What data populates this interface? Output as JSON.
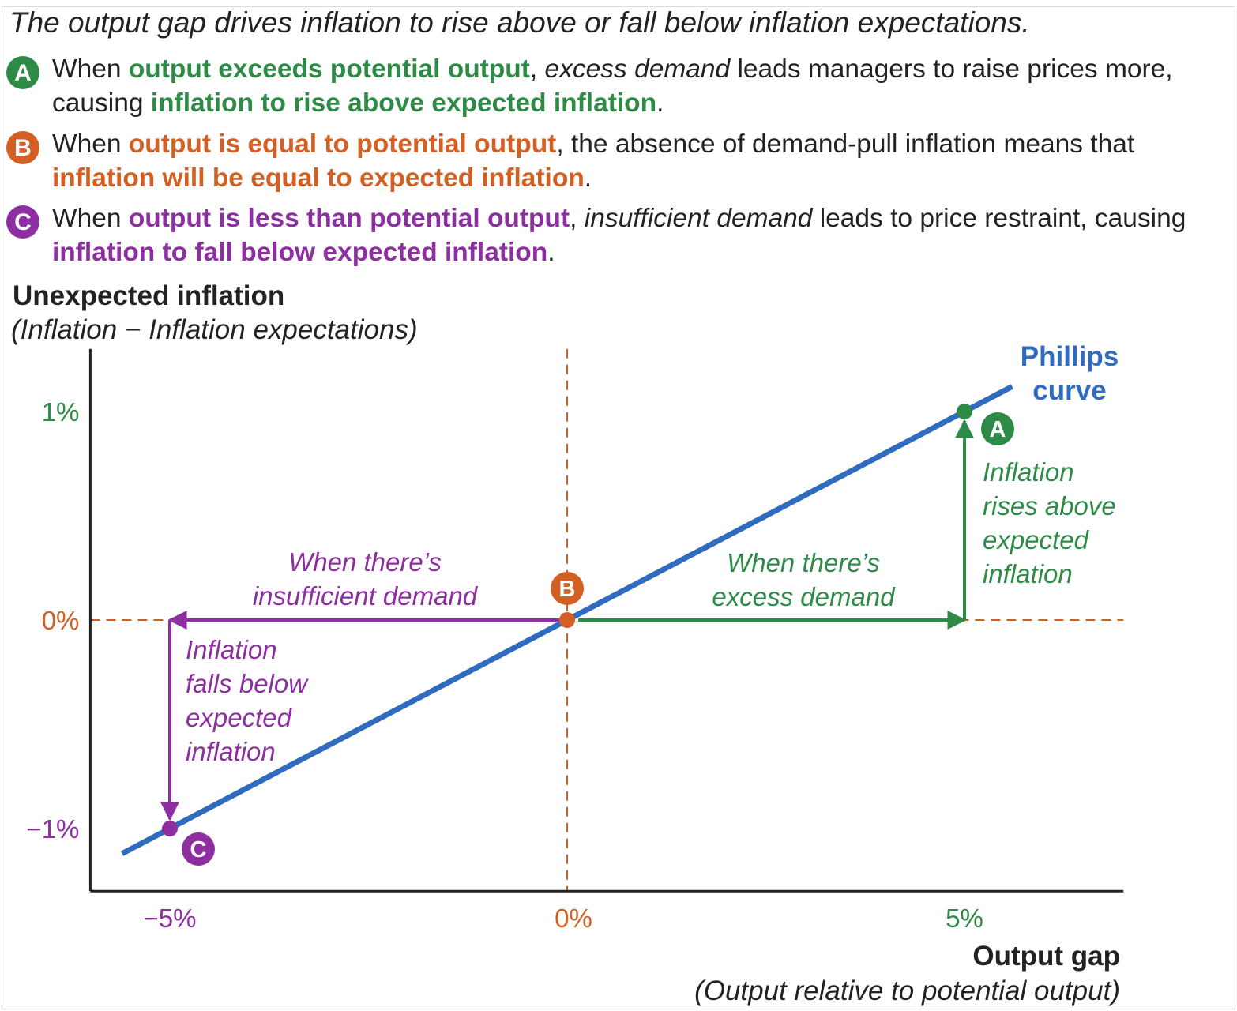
{
  "headline": "The output gap drives inflation to rise above or fall below inflation expectations.",
  "points": [
    {
      "badge": "A",
      "color": "#2e8b47",
      "parts": [
        {
          "t": "When ",
          "s": "plain"
        },
        {
          "t": "output exceeds potential output",
          "s": "bold"
        },
        {
          "t": ", ",
          "s": "plain"
        },
        {
          "t": "excess demand",
          "s": "italic"
        },
        {
          "t": " leads managers to raise prices more, causing ",
          "s": "plain"
        },
        {
          "t": "inflation to rise above expected inflation",
          "s": "bold"
        },
        {
          "t": ".",
          "s": "plain"
        }
      ]
    },
    {
      "badge": "B",
      "color": "#d35f22",
      "parts": [
        {
          "t": "When ",
          "s": "plain"
        },
        {
          "t": "output is equal to potential output",
          "s": "bold"
        },
        {
          "t": ", the absence of demand-pull inflation means that ",
          "s": "plain"
        },
        {
          "t": "inflation will be equal to expected inflation",
          "s": "bold"
        },
        {
          "t": ".",
          "s": "plain"
        }
      ]
    },
    {
      "badge": "C",
      "color": "#8d2fa0",
      "parts": [
        {
          "t": "When ",
          "s": "plain"
        },
        {
          "t": "output is less than potential output",
          "s": "bold"
        },
        {
          "t": ", ",
          "s": "plain"
        },
        {
          "t": "insufficient demand",
          "s": "italic"
        },
        {
          "t": " leads to price restraint, causing ",
          "s": "plain"
        },
        {
          "t": "inflation to fall below expected inflation",
          "s": "bold"
        },
        {
          "t": ".",
          "s": "plain"
        }
      ]
    }
  ],
  "chart_data": {
    "type": "line",
    "ylabel": "Unexpected inflation",
    "ylabel_sub": "(Inflation − Inflation expectations)",
    "xlabel": "Output gap",
    "xlabel_sub": "(Output relative to potential output)",
    "xlim": [
      -6,
      7
    ],
    "ylim": [
      -1.3,
      1.3
    ],
    "x_ticks": [
      {
        "value": -5,
        "label": "−5%",
        "color": "#8d2fa0"
      },
      {
        "value": 0,
        "label": "0%",
        "color": "#d35f22"
      },
      {
        "value": 5,
        "label": "5%",
        "color": "#2e8b47"
      }
    ],
    "y_ticks": [
      {
        "value": 1,
        "label": "1%",
        "color": "#2e8b47"
      },
      {
        "value": 0,
        "label": "0%",
        "color": "#d35f22"
      },
      {
        "value": -1,
        "label": "−1%",
        "color": "#8d2fa0"
      }
    ],
    "series": [
      {
        "name": "Phillips curve",
        "name_lines": [
          "Phillips",
          "curve"
        ],
        "color": "#2f6bbf",
        "x": [
          -5.6,
          5.6
        ],
        "y": [
          -1.12,
          1.12
        ]
      }
    ],
    "points": [
      {
        "label": "A",
        "x": 5,
        "y": 1,
        "color": "#2e8b47"
      },
      {
        "label": "B",
        "x": 0,
        "y": 0,
        "color": "#d35f22"
      },
      {
        "label": "C",
        "x": -5,
        "y": -1,
        "color": "#8d2fa0"
      }
    ],
    "annotations": [
      {
        "lines": [
          "When there’s",
          "insufficient demand"
        ],
        "color": "#8d2fa0"
      },
      {
        "lines": [
          "When there’s",
          "excess demand"
        ],
        "color": "#2e8b47"
      },
      {
        "lines": [
          "Inflation",
          "rises above",
          "expected",
          "inflation"
        ],
        "color": "#2e8b47"
      },
      {
        "lines": [
          "Inflation",
          "falls below",
          "expected",
          "inflation"
        ],
        "color": "#8d2fa0"
      }
    ],
    "grid": false,
    "colors": {
      "axis": "#222222",
      "guide": "#d35f22",
      "curve": "#2f6bbf",
      "green": "#2e8b47",
      "purple": "#8d2fa0"
    }
  }
}
